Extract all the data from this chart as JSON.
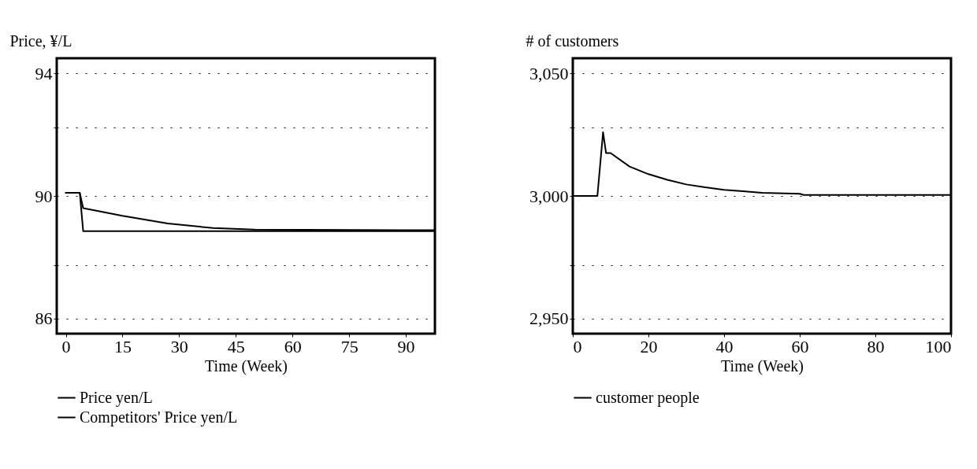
{
  "chart_data": [
    {
      "type": "line",
      "ylabel": "Price, ¥/L",
      "xlabel": "Time (Week)",
      "xlim": [
        -2.4,
        97.7
      ],
      "xticks": [
        0,
        15,
        30,
        45,
        60,
        75,
        90
      ],
      "ylim": [
        85.5,
        94.5
      ],
      "yticks": [
        86,
        {
          "value": 87.75,
          "label": null
        },
        90,
        {
          "value": 92.25,
          "label": null
        },
        94
      ],
      "grid": "y",
      "legend": "bottom",
      "marker": "none",
      "line_style": "solid",
      "series": [
        {
          "name": "Price  yen/L",
          "color": "#000000",
          "x": [
            0,
            3.7,
            4.6,
            97.7
          ],
          "values": [
            90.1,
            90.1,
            88.85,
            88.85
          ]
        },
        {
          "name": "Competitors' Price  yen/L",
          "color": "#000000",
          "x": [
            0,
            3.7,
            4.6,
            15,
            27,
            39,
            50,
            97.7
          ],
          "values": [
            90.1,
            90.1,
            89.6,
            89.35,
            89.1,
            88.95,
            88.9,
            88.88
          ]
        }
      ]
    },
    {
      "type": "line",
      "ylabel": "# of customers",
      "xlabel": "Time (Week)",
      "xlim": [
        0,
        100
      ],
      "xticks": [
        0,
        20,
        40,
        60,
        80,
        100
      ],
      "ylim": [
        2943.75,
        3056.25
      ],
      "yticks": [
        {
          "value": 2950,
          "label": "2,950"
        },
        {
          "value": 2971.875,
          "label": null
        },
        {
          "value": 3000,
          "label": "3,000"
        },
        {
          "value": 3028.125,
          "label": null
        },
        {
          "value": 3050,
          "label": "3,050"
        }
      ],
      "grid": "y",
      "legend": "bottom",
      "marker": "none",
      "line_style": "solid",
      "series": [
        {
          "name": "customer  people",
          "color": "#000000",
          "x": [
            0,
            6.5,
            8,
            8.8,
            10,
            15,
            20,
            25,
            30,
            35,
            40,
            45,
            50,
            60,
            61,
            100
          ],
          "values": [
            3000,
            3000,
            3026,
            3017.5,
            3017.5,
            3012,
            3008.9,
            3006.6,
            3004.7,
            3003.5,
            3002.5,
            3001.9,
            3001.3,
            3000.9,
            3000.4,
            3000.4
          ]
        }
      ]
    }
  ]
}
